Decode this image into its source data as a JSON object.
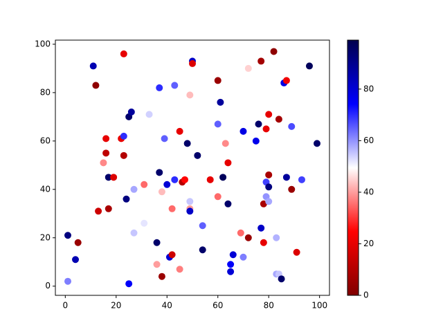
{
  "chart_data": {
    "type": "scatter",
    "x": [
      1,
      1,
      4,
      5,
      11,
      12,
      13,
      15,
      16,
      16,
      17,
      17,
      19,
      22,
      23,
      23,
      23,
      24,
      25,
      25,
      26,
      27,
      27,
      31,
      31,
      33,
      36,
      36,
      37,
      37,
      38,
      38,
      39,
      40,
      41,
      42,
      42,
      43,
      43,
      45,
      45,
      46,
      47,
      48,
      49,
      49,
      49,
      49,
      50,
      50,
      52,
      54,
      54,
      57,
      60,
      60,
      60,
      61,
      62,
      63,
      64,
      64,
      65,
      65,
      66,
      69,
      70,
      70,
      72,
      72,
      76,
      75,
      77,
      77,
      78,
      78,
      79,
      79,
      79,
      80,
      80,
      80,
      80,
      82,
      83,
      83,
      84,
      84,
      85,
      86,
      87,
      87,
      89,
      89,
      91,
      93,
      96,
      99
    ],
    "y": [
      2,
      21,
      11,
      18,
      91,
      83,
      31,
      51,
      61,
      55,
      45,
      32,
      45,
      61,
      62,
      96,
      54,
      36,
      70,
      1,
      72,
      40,
      22,
      26,
      42,
      71,
      9,
      18,
      47,
      82,
      39,
      4,
      61,
      42,
      12,
      13,
      32,
      83,
      44,
      64,
      7,
      43,
      44,
      59,
      79,
      35,
      32,
      31,
      93,
      92,
      54,
      25,
      15,
      44,
      85,
      67,
      37,
      76,
      45,
      59,
      51,
      34,
      9,
      6,
      13,
      22,
      12,
      64,
      20,
      90,
      67,
      60,
      93,
      24,
      18,
      34,
      43,
      37,
      65,
      71,
      35,
      46,
      41,
      97,
      20,
      5,
      5,
      69,
      3,
      84,
      85,
      45,
      40,
      66,
      14,
      44,
      91,
      59
    ],
    "c": [
      62,
      92,
      85,
      5,
      85,
      3,
      15,
      38,
      20,
      12,
      95,
      8,
      18,
      20,
      70,
      20,
      10,
      92,
      95,
      75,
      88,
      58,
      55,
      52,
      35,
      54,
      40,
      95,
      95,
      70,
      43,
      5,
      65,
      80,
      80,
      15,
      35,
      65,
      70,
      20,
      37,
      10,
      25,
      95,
      43,
      55,
      40,
      82,
      82,
      18,
      95,
      65,
      95,
      20,
      5,
      65,
      35,
      88,
      97,
      38,
      20,
      95,
      75,
      80,
      80,
      35,
      62,
      78,
      5,
      45,
      95,
      77,
      7,
      82,
      20,
      8,
      68,
      60,
      20,
      20,
      58,
      8,
      92,
      3,
      57,
      58,
      55,
      7,
      95,
      78,
      22,
      88,
      5,
      67,
      18,
      68,
      97,
      95
    ],
    "xlim": [
      -3.9,
      103.9
    ],
    "ylim": [
      -3.8,
      101.7
    ],
    "xticks": [
      0,
      20,
      40,
      60,
      80,
      100
    ],
    "yticks": [
      0,
      20,
      40,
      60,
      80,
      100
    ],
    "colormap": [
      "#800000",
      "#ff0000",
      "#ffffff",
      "#0000ff",
      "#00004d"
    ],
    "clim": [
      0,
      99
    ],
    "cticks": [
      0,
      20,
      40,
      60,
      80
    ]
  }
}
